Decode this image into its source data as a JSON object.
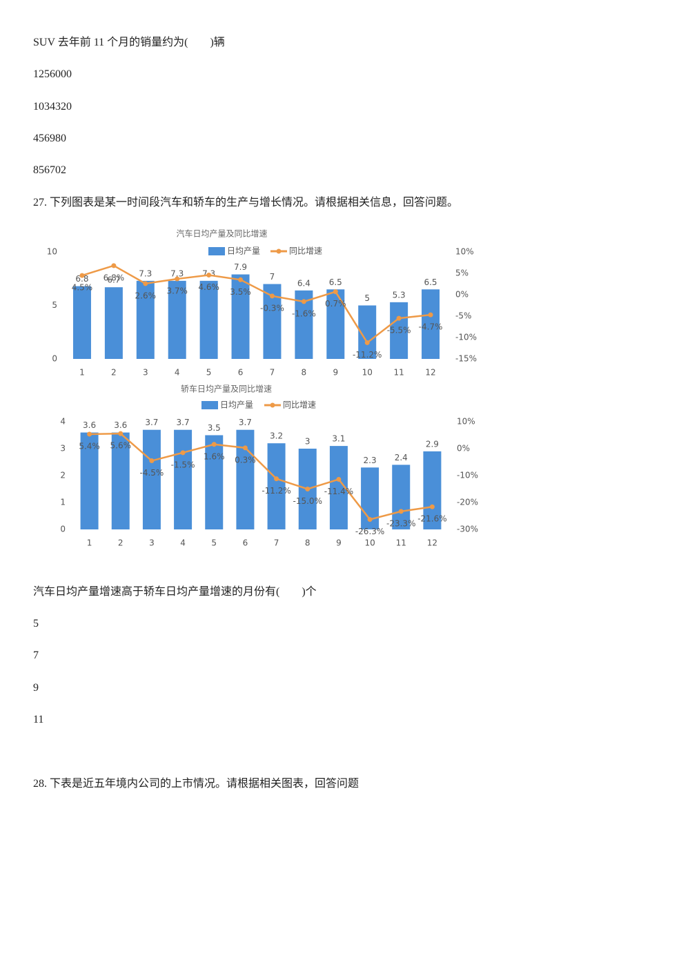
{
  "q26": {
    "stem": "SUV 去年前 11 个月的销量约为(　　)辆",
    "options": [
      "1256000",
      "1034320",
      "456980",
      "856702"
    ]
  },
  "q27": {
    "intro": "27. 下列图表是某一时间段汽车和轿车的生产与增长情况。请根据相关信息，回答问题。",
    "stem": "汽车日均产量增速高于轿车日均产量增速的月份有(　　)个",
    "options": [
      "5",
      "7",
      "9",
      "11"
    ]
  },
  "q28": {
    "intro": "28. 下表是近五年境内公司的上市情况。请根据相关图表，回答问题"
  },
  "chart_data": [
    {
      "type": "combo",
      "title": "汽车日均产量及同比增速",
      "categories": [
        "1",
        "2",
        "3",
        "4",
        "5",
        "6",
        "7",
        "8",
        "9",
        "10",
        "11",
        "12"
      ],
      "series": [
        {
          "name": "日均产量",
          "type": "bar",
          "color": "#4a8fd8",
          "values": [
            6.8,
            6.7,
            7.3,
            7.3,
            7.3,
            7.9,
            7,
            6.4,
            6.5,
            5,
            5.3,
            6.5
          ]
        },
        {
          "name": "同比增速",
          "type": "line",
          "axis": "y2",
          "color": "#ee9a47",
          "values": [
            4.5,
            6.8,
            2.6,
            3.7,
            4.6,
            3.5,
            -0.3,
            -1.6,
            0.7,
            -11.2,
            -5.5,
            -4.7
          ],
          "value_labels": [
            "4.5%",
            "6.8%",
            "2.6%",
            "3.7%",
            "4.6%",
            "3.5%",
            "-0.3%",
            "-1.6%",
            "0.7%",
            "-11.2%",
            "-5.5%",
            "-4.7%"
          ]
        }
      ],
      "ylim": [
        0,
        10
      ],
      "yticks": [
        0,
        5,
        10
      ],
      "y2lim": [
        -15,
        10
      ],
      "y2ticks": [
        {
          "value": -15,
          "label": "-15%"
        },
        {
          "value": -10,
          "label": "-10%"
        },
        {
          "value": -5,
          "label": "-5%"
        },
        {
          "value": 0,
          "label": "0%"
        },
        {
          "value": 5,
          "label": "5%"
        },
        {
          "value": 10,
          "label": "10%"
        }
      ],
      "grid": false
    },
    {
      "type": "combo",
      "title": "轿车日均产量及同比增速",
      "categories": [
        "1",
        "2",
        "3",
        "4",
        "5",
        "6",
        "7",
        "8",
        "9",
        "10",
        "11",
        "12"
      ],
      "series": [
        {
          "name": "日均产量",
          "type": "bar",
          "color": "#4a8fd8",
          "values": [
            3.6,
            3.6,
            3.7,
            3.7,
            3.5,
            3.7,
            3.2,
            3,
            3.1,
            2.3,
            2.4,
            2.9
          ]
        },
        {
          "name": "同比增速",
          "type": "line",
          "axis": "y2",
          "color": "#ee9a47",
          "values": [
            5.4,
            5.6,
            -4.5,
            -1.5,
            1.6,
            0.3,
            -11.2,
            -15.0,
            -11.4,
            -26.3,
            -23.3,
            -21.6
          ],
          "value_labels": [
            "5.4%",
            "5.6%",
            "-4.5%",
            "-1.5%",
            "1.6%",
            "0.3%",
            "-11.2%",
            "-15.0%",
            "-11.4%",
            "-26.3%",
            "-23.3%",
            "-21.6%"
          ]
        }
      ],
      "ylim": [
        0,
        4
      ],
      "yticks": [
        0,
        1,
        2,
        3,
        4
      ],
      "y2lim": [
        -30,
        10
      ],
      "y2ticks": [
        {
          "value": -30,
          "label": "-30%"
        },
        {
          "value": -20,
          "label": "-20%"
        },
        {
          "value": -10,
          "label": "-10%"
        },
        {
          "value": 0,
          "label": "0%"
        },
        {
          "value": 10,
          "label": "10%"
        }
      ],
      "grid": false
    }
  ]
}
